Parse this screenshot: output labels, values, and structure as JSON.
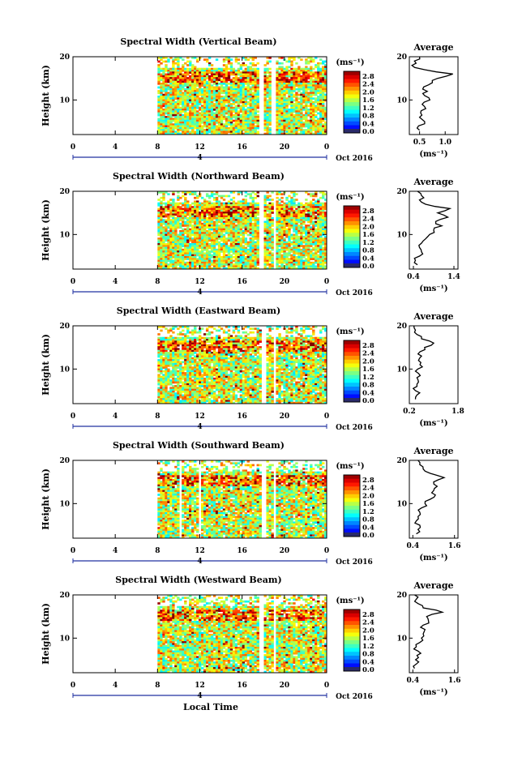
{
  "chart_data": [
    {
      "type": "heatmap",
      "title": "Spectral Width (Vertical Beam)",
      "ylabel": "Height (km)",
      "x_ticks": [
        "0",
        "4",
        "8",
        "12",
        "16",
        "20",
        "0"
      ],
      "xlim": [
        0,
        24
      ],
      "ylim": [
        2,
        20
      ],
      "y_ticks": [
        "20",
        "10"
      ],
      "colorbar": {
        "unit": "(ms⁻¹)",
        "ticks": [
          "2.8",
          "2.4",
          "2.0",
          "1.6",
          "1.2",
          "0.8",
          "0.4",
          "0.0"
        ],
        "range": [
          0.0,
          3.0
        ]
      },
      "date_label": "Oct 2016",
      "day_label": "4",
      "data_start_hour": 8,
      "gaps_hours": [
        [
          17.6,
          18.0
        ],
        [
          18.8,
          19.1
        ]
      ],
      "average_profile": {
        "title": "Average",
        "xlabel": "(ms⁻¹)",
        "x_ticks": [
          "0.5",
          "1.0"
        ],
        "xlim": [
          0.3,
          1.25
        ],
        "y_ticks": [
          "20",
          "10"
        ],
        "height_km": [
          3,
          4,
          5,
          6,
          7,
          8,
          9,
          10,
          11,
          12,
          13,
          14,
          15,
          16,
          17,
          18,
          19,
          20
        ],
        "values": [
          0.5,
          0.48,
          0.6,
          0.5,
          0.52,
          0.62,
          0.55,
          0.7,
          0.6,
          0.65,
          0.58,
          0.75,
          0.85,
          1.15,
          0.6,
          0.35,
          0.4,
          0.5
        ]
      }
    },
    {
      "type": "heatmap",
      "title": "Spectral Width (Northward Beam)",
      "ylabel": "Height (km)",
      "x_ticks": [
        "0",
        "4",
        "8",
        "12",
        "16",
        "20",
        "0"
      ],
      "xlim": [
        0,
        24
      ],
      "ylim": [
        2,
        20
      ],
      "y_ticks": [
        "20",
        "10"
      ],
      "colorbar": {
        "unit": "(ms⁻¹)",
        "ticks": [
          "2.8",
          "2.4",
          "2.0",
          "1.6",
          "1.2",
          "0.8",
          "0.4",
          "0.0"
        ],
        "range": [
          0.0,
          3.0
        ]
      },
      "date_label": "Oct 2016",
      "day_label": "4",
      "data_start_hour": 8,
      "gaps_hours": [
        [
          17.7,
          18.1
        ],
        [
          18.9,
          19.2
        ]
      ],
      "average_profile": {
        "title": "Average",
        "xlabel": "(ms⁻¹)",
        "x_ticks": [
          "0.4",
          "1.4"
        ],
        "xlim": [
          0.3,
          1.5
        ],
        "y_ticks": [
          "20",
          "10"
        ],
        "height_km": [
          3,
          4,
          5,
          6,
          7,
          8,
          9,
          10,
          11,
          12,
          13,
          14,
          15,
          16,
          17,
          18,
          19,
          20
        ],
        "values": [
          0.5,
          0.45,
          0.55,
          0.6,
          0.55,
          0.6,
          0.7,
          0.8,
          0.9,
          1.1,
          0.95,
          1.25,
          1.0,
          1.3,
          0.7,
          0.55,
          0.6,
          0.5
        ]
      }
    },
    {
      "type": "heatmap",
      "title": "Spectral Width (Eastward Beam)",
      "ylabel": "Height (km)",
      "x_ticks": [
        "0",
        "4",
        "8",
        "12",
        "16",
        "20",
        "0"
      ],
      "xlim": [
        0,
        24
      ],
      "ylim": [
        2,
        20
      ],
      "y_ticks": [
        "20",
        "10"
      ],
      "colorbar": {
        "unit": "(ms⁻¹)",
        "ticks": [
          "2.8",
          "2.4",
          "2.0",
          "1.6",
          "1.2",
          "0.8",
          "0.4",
          "0.0"
        ],
        "range": [
          0.0,
          3.0
        ]
      },
      "date_label": "Oct 2016",
      "day_label": "4",
      "data_start_hour": 8,
      "gaps_hours": [
        [
          17.9,
          18.3
        ],
        [
          18.9,
          19.2
        ]
      ],
      "average_profile": {
        "title": "Average",
        "xlabel": "(ms⁻¹)",
        "x_ticks": [
          "0.2",
          "1.8"
        ],
        "xlim": [
          0.2,
          1.8
        ],
        "y_ticks": [
          "20",
          "10"
        ],
        "height_km": [
          3,
          4,
          5,
          6,
          7,
          8,
          9,
          10,
          11,
          12,
          13,
          14,
          15,
          16,
          17,
          18,
          19,
          20
        ],
        "values": [
          0.4,
          0.45,
          0.4,
          0.45,
          0.5,
          0.45,
          0.5,
          0.48,
          0.55,
          0.5,
          0.6,
          0.55,
          0.7,
          1.0,
          0.6,
          0.45,
          0.4,
          0.35
        ]
      }
    },
    {
      "type": "heatmap",
      "title": "Spectral Width (Southward Beam)",
      "ylabel": "Height (km)",
      "x_ticks": [
        "0",
        "4",
        "8",
        "12",
        "16",
        "20",
        "0"
      ],
      "xlim": [
        0,
        24
      ],
      "ylim": [
        2,
        20
      ],
      "y_ticks": [
        "20",
        "10"
      ],
      "colorbar": {
        "unit": "(ms⁻¹)",
        "ticks": [
          "2.8",
          "2.4",
          "2.0",
          "1.6",
          "1.2",
          "0.8",
          "0.4",
          "0.0"
        ],
        "range": [
          0.0,
          3.0
        ]
      },
      "date_label": "Oct 2016",
      "day_label": "4",
      "data_start_hour": 8,
      "gaps_hours": [
        [
          17.8,
          18.2
        ],
        [
          18.9,
          19.2
        ],
        [
          10.0,
          10.2
        ],
        [
          11.8,
          12.0
        ]
      ],
      "average_profile": {
        "title": "Average",
        "xlabel": "(ms⁻¹)",
        "x_ticks": [
          "0.4",
          "1.6"
        ],
        "xlim": [
          0.3,
          1.7
        ],
        "y_ticks": [
          "20",
          "10"
        ],
        "height_km": [
          3,
          4,
          5,
          6,
          7,
          8,
          9,
          10,
          11,
          12,
          13,
          14,
          15,
          16,
          17,
          18,
          19,
          20
        ],
        "values": [
          0.5,
          0.55,
          0.6,
          0.5,
          0.55,
          0.6,
          0.65,
          0.75,
          0.9,
          1.05,
          1.0,
          1.1,
          1.0,
          1.3,
          0.9,
          0.7,
          0.6,
          0.55
        ]
      }
    },
    {
      "type": "heatmap",
      "title": "Spectral Width (Westward Beam)",
      "ylabel": "Height (km)",
      "x_ticks": [
        "0",
        "4",
        "8",
        "12",
        "16",
        "20",
        "0"
      ],
      "xlim": [
        0,
        24
      ],
      "ylim": [
        2,
        20
      ],
      "y_ticks": [
        "20",
        "10"
      ],
      "colorbar": {
        "unit": "(ms⁻¹)",
        "ticks": [
          "2.8",
          "2.4",
          "2.0",
          "1.6",
          "1.2",
          "0.8",
          "0.4",
          "0.0"
        ],
        "range": [
          0.0,
          3.0
        ]
      },
      "date_label": "Oct 2016",
      "day_label": "4",
      "data_start_hour": 8,
      "gaps_hours": [
        [
          17.7,
          18.1
        ],
        [
          18.9,
          19.2
        ]
      ],
      "average_profile": {
        "title": "Average",
        "xlabel": "(ms⁻¹)",
        "x_ticks": [
          "0.4",
          "1.6"
        ],
        "xlim": [
          0.3,
          1.7
        ],
        "y_ticks": [
          "20",
          "10"
        ],
        "height_km": [
          3,
          4,
          5,
          6,
          7,
          8,
          9,
          10,
          11,
          12,
          13,
          14,
          15,
          16,
          17,
          18,
          19,
          20
        ],
        "values": [
          0.45,
          0.5,
          0.48,
          0.52,
          0.55,
          0.5,
          0.6,
          0.65,
          0.7,
          0.75,
          0.7,
          0.85,
          0.8,
          1.25,
          0.7,
          0.55,
          0.5,
          0.45
        ]
      }
    }
  ],
  "footer": {
    "xlabel": "Local Time"
  }
}
